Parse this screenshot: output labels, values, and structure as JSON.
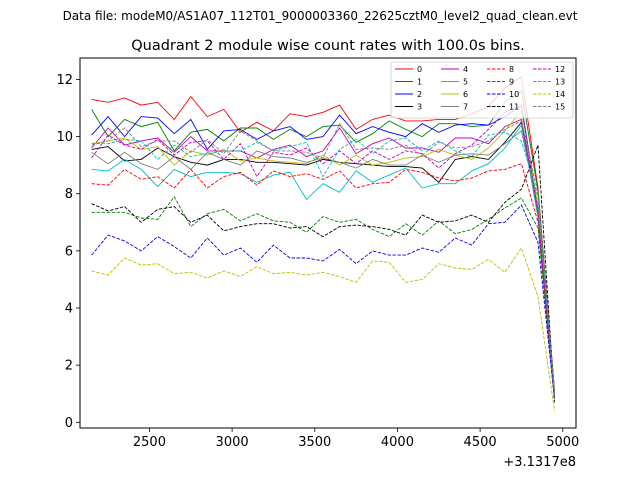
{
  "chart_data": {
    "type": "line",
    "suptitle": "Data file: modeM0/AS1A07_112T01_9000003360_22625cztM0_level2_quad_clean.evt",
    "title": "Quadrant 2 module wise count rates with 100.0s bins.",
    "xlabel": "",
    "ylabel": "",
    "x_offset_label": "+3.1317e8",
    "xlim": [
      2080,
      5080
    ],
    "ylim": [
      -0.2,
      12.75
    ],
    "xticks": [
      2500,
      3000,
      3500,
      4000,
      4500,
      5000
    ],
    "xtick_labels": [
      "2500",
      "3000",
      "3500",
      "4000",
      "4500",
      "5000"
    ],
    "yticks": [
      0,
      2,
      4,
      6,
      8,
      10,
      12
    ],
    "ytick_labels": [
      "0",
      "2",
      "4",
      "6",
      "8",
      "10",
      "12"
    ],
    "grid": false,
    "legend_position": "top-right",
    "x": [
      2150,
      2250,
      2350,
      2450,
      2550,
      2650,
      2750,
      2850,
      2950,
      3050,
      3150,
      3250,
      3350,
      3450,
      3550,
      3650,
      3750,
      3850,
      3950,
      4050,
      4150,
      4250,
      4350,
      4450,
      4550,
      4650,
      4750,
      4850,
      4950
    ],
    "series": [
      {
        "name": "0",
        "color": "#ff0000",
        "dash": "solid",
        "values": [
          11.3,
          11.2,
          11.35,
          11.1,
          11.2,
          10.6,
          11.4,
          10.7,
          10.95,
          10.15,
          10.5,
          10.2,
          10.8,
          10.7,
          10.85,
          11.1,
          10.25,
          10.6,
          10.75,
          10.55,
          10.55,
          10.6,
          10.6,
          10.8,
          11.05,
          11.7,
          12.1,
          8.2,
          1.1
        ]
      },
      {
        "name": "1",
        "color": "#008000",
        "dash": "solid",
        "values": [
          10.95,
          10.0,
          10.6,
          10.35,
          10.5,
          9.5,
          10.15,
          10.25,
          9.85,
          10.3,
          10.3,
          9.9,
          10.25,
          10.0,
          10.35,
          10.4,
          9.8,
          10.1,
          10.55,
          10.25,
          10.0,
          10.45,
          10.45,
          10.35,
          10.4,
          11.2,
          11.6,
          8.1,
          1.1
        ]
      },
      {
        "name": "2",
        "color": "#0000ff",
        "dash": "solid",
        "values": [
          10.05,
          10.7,
          10.0,
          10.7,
          10.65,
          10.1,
          10.6,
          9.55,
          10.2,
          10.25,
          9.9,
          10.2,
          10.35,
          9.9,
          10.0,
          10.75,
          10.1,
          10.35,
          10.15,
          10.0,
          10.45,
          10.15,
          10.4,
          10.45,
          10.4,
          10.7,
          11.1,
          7.5,
          1.0
        ]
      },
      {
        "name": "3",
        "color": "#000000",
        "dash": "solid",
        "values": [
          9.55,
          9.65,
          9.15,
          9.2,
          9.6,
          9.3,
          9.1,
          9.0,
          9.2,
          9.2,
          9.1,
          9.1,
          9.05,
          9.0,
          9.2,
          9.1,
          9.05,
          9.0,
          8.95,
          8.95,
          8.9,
          8.4,
          9.2,
          9.3,
          9.2,
          9.8,
          10.5,
          7.2,
          0.9
        ]
      },
      {
        "name": "4",
        "color": "#bf00bf",
        "dash": "solid",
        "values": [
          9.6,
          10.3,
          9.7,
          9.85,
          9.95,
          9.45,
          10.0,
          9.5,
          9.5,
          9.5,
          9.25,
          9.55,
          9.7,
          9.3,
          9.5,
          10.3,
          9.4,
          9.75,
          9.95,
          9.6,
          9.6,
          9.45,
          9.95,
          9.95,
          9.75,
          10.35,
          10.6,
          7.4,
          0.9
        ]
      },
      {
        "name": "5",
        "color": "#00bfbf",
        "dash": "solid",
        "values": [
          8.85,
          8.8,
          9.2,
          8.85,
          8.25,
          8.85,
          8.6,
          8.75,
          8.75,
          8.7,
          8.4,
          8.65,
          8.75,
          7.8,
          8.35,
          8.05,
          8.8,
          8.4,
          8.65,
          8.9,
          8.2,
          8.35,
          8.35,
          8.8,
          9.05,
          9.6,
          10.4,
          7.2,
          0.9
        ]
      },
      {
        "name": "6",
        "color": "#bfbf00",
        "dash": "solid",
        "values": [
          9.75,
          9.85,
          9.95,
          9.55,
          9.65,
          9.0,
          9.5,
          9.35,
          9.55,
          9.15,
          9.25,
          9.15,
          9.1,
          9.05,
          9.35,
          9.0,
          9.35,
          9.0,
          9.1,
          9.25,
          9.3,
          9.55,
          9.35,
          9.2,
          9.6,
          10.2,
          10.9,
          7.6,
          0.9
        ]
      },
      {
        "name": "7",
        "color": "#808080",
        "dash": "solid",
        "values": [
          9.45,
          9.05,
          9.45,
          9.05,
          8.85,
          9.3,
          8.85,
          9.45,
          9.2,
          9.0,
          9.5,
          9.3,
          9.25,
          9.1,
          9.25,
          9.1,
          8.9,
          9.2,
          9.0,
          9.0,
          9.35,
          9.1,
          9.35,
          9.4,
          9.35,
          9.75,
          10.2,
          7.5,
          1.0
        ]
      },
      {
        "name": "8",
        "color": "#ff0000",
        "dash": "dashed",
        "values": [
          8.35,
          8.3,
          8.85,
          8.5,
          8.6,
          8.2,
          8.85,
          8.2,
          8.6,
          8.75,
          8.3,
          8.8,
          8.6,
          8.7,
          8.5,
          8.8,
          8.2,
          8.35,
          8.4,
          8.85,
          8.75,
          8.55,
          8.45,
          8.55,
          8.8,
          8.85,
          9.05,
          7.0,
          0.9
        ]
      },
      {
        "name": "9",
        "color": "#008000",
        "dash": "dashed",
        "values": [
          7.35,
          7.35,
          7.35,
          7.15,
          7.1,
          7.9,
          6.85,
          7.3,
          7.45,
          7.05,
          7.3,
          7.05,
          7.0,
          6.65,
          7.2,
          7.0,
          7.1,
          6.75,
          6.5,
          6.95,
          6.55,
          7.05,
          6.6,
          6.75,
          7.1,
          7.5,
          7.85,
          6.8,
          0.8
        ]
      },
      {
        "name": "10",
        "color": "#0000ff",
        "dash": "dashed",
        "values": [
          5.85,
          6.55,
          6.35,
          6.0,
          6.5,
          6.15,
          5.75,
          6.45,
          5.85,
          6.1,
          5.6,
          6.2,
          5.75,
          5.75,
          5.65,
          6.05,
          5.55,
          6.0,
          5.85,
          5.85,
          6.1,
          5.95,
          6.45,
          6.2,
          6.95,
          7.0,
          7.6,
          6.3,
          0.8
        ]
      },
      {
        "name": "11",
        "color": "#000000",
        "dash": "dashed",
        "values": [
          7.65,
          7.4,
          7.55,
          7.0,
          7.45,
          7.55,
          7.0,
          7.25,
          6.7,
          6.85,
          6.95,
          6.95,
          6.8,
          6.85,
          6.5,
          6.85,
          6.9,
          6.85,
          6.75,
          6.55,
          7.25,
          7.0,
          7.05,
          7.25,
          7.0,
          7.7,
          8.15,
          9.7,
          0.7
        ]
      },
      {
        "name": "12",
        "color": "#bf00bf",
        "dash": "dashed",
        "values": [
          9.25,
          10.05,
          9.7,
          9.55,
          9.9,
          9.35,
          9.8,
          9.85,
          9.2,
          9.75,
          8.6,
          9.45,
          9.35,
          9.6,
          9.05,
          9.5,
          9.05,
          9.5,
          9.2,
          9.5,
          9.4,
          8.9,
          9.4,
          9.7,
          10.25,
          10.85,
          11.1,
          7.3,
          0.9
        ]
      },
      {
        "name": "13",
        "color": "#00bfbf",
        "dash": "dashed",
        "values": [
          9.75,
          9.75,
          9.9,
          9.85,
          9.2,
          9.7,
          9.3,
          9.4,
          9.5,
          9.5,
          9.8,
          9.5,
          9.65,
          9.8,
          8.6,
          9.55,
          9.9,
          9.4,
          9.85,
          9.95,
          9.5,
          9.85,
          9.5,
          9.3,
          10.05,
          10.15,
          9.85,
          7.9,
          0.9
        ]
      },
      {
        "name": "14",
        "color": "#bfbf00",
        "dash": "dashed",
        "values": [
          5.3,
          5.15,
          5.75,
          5.5,
          5.55,
          5.2,
          5.25,
          5.05,
          5.3,
          5.1,
          5.45,
          5.2,
          5.25,
          5.15,
          5.25,
          5.1,
          4.9,
          5.65,
          5.6,
          4.9,
          5.0,
          5.55,
          5.4,
          5.35,
          5.7,
          5.25,
          6.1,
          4.4,
          0.4
        ]
      },
      {
        "name": "15",
        "color": "#808080",
        "dash": "dashed",
        "values": [
          9.7,
          9.85,
          10.3,
          9.65,
          9.85,
          9.85,
          9.45,
          9.9,
          9.4,
          10.2,
          9.85,
          9.5,
          9.5,
          9.45,
          9.25,
          10.45,
          9.55,
          9.6,
          9.55,
          9.7,
          9.35,
          9.8,
          9.6,
          9.65,
          9.85,
          10.25,
          10.55,
          8.0,
          1.1
        ]
      }
    ]
  }
}
